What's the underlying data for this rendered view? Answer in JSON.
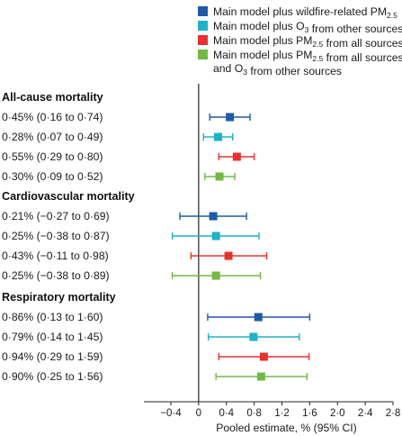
{
  "chart_data": {
    "type": "forest",
    "xlabel": "Pooled estimate, % (95% CI)",
    "xlim": [
      -0.4,
      2.8
    ],
    "xticks": [
      "−0·4",
      "0",
      "0·4",
      "0·8",
      "1·2",
      "1·6",
      "2·0",
      "2·4",
      "2·8"
    ],
    "xtick_values": [
      -0.4,
      0,
      0.4,
      0.8,
      1.2,
      1.6,
      2.0,
      2.4,
      2.8
    ],
    "reference_line": 0,
    "legend_position": "top-right",
    "series": [
      {
        "key": "wildfire",
        "name": "Main model plus wildfire-related PM2.5",
        "color": "#1f5aa6"
      },
      {
        "key": "o3other",
        "name": "Main model plus O3 from other sources",
        "color": "#1eb3c8"
      },
      {
        "key": "pmall",
        "name": "Main model plus PM2.5 from all sources",
        "color": "#e8312f"
      },
      {
        "key": "pmo3",
        "name": "Main model plus PM2.5 from all sources and O3 from other sources",
        "color": "#72b844"
      }
    ],
    "groups": [
      {
        "title": "All-cause mortality",
        "rows": [
          {
            "series": "wildfire",
            "label": "0·45% (0·16 to 0·74)",
            "est": 0.45,
            "lo": 0.16,
            "hi": 0.74
          },
          {
            "series": "o3other",
            "label": "0·28% (0·07 to 0·49)",
            "est": 0.28,
            "lo": 0.07,
            "hi": 0.49
          },
          {
            "series": "pmall",
            "label": "0·55% (0·29 to 0·80)",
            "est": 0.55,
            "lo": 0.29,
            "hi": 0.8
          },
          {
            "series": "pmo3",
            "label": "0·30% (0·09 to 0·52)",
            "est": 0.3,
            "lo": 0.09,
            "hi": 0.52
          }
        ]
      },
      {
        "title": "Cardiovascular mortality",
        "rows": [
          {
            "series": "wildfire",
            "label": "0·21% (−0·27 to 0·69)",
            "est": 0.21,
            "lo": -0.27,
            "hi": 0.69
          },
          {
            "series": "o3other",
            "label": "0·25% (−0·38 to 0·87)",
            "est": 0.25,
            "lo": -0.38,
            "hi": 0.87
          },
          {
            "series": "pmall",
            "label": "0·43% (−0·11 to 0·98)",
            "est": 0.43,
            "lo": -0.11,
            "hi": 0.98
          },
          {
            "series": "pmo3",
            "label": "0·25% (−0·38 to 0·89)",
            "est": 0.25,
            "lo": -0.38,
            "hi": 0.89
          }
        ]
      },
      {
        "title": "Respiratory mortality",
        "rows": [
          {
            "series": "wildfire",
            "label": "0·86% (0·13 to 1·60)",
            "est": 0.86,
            "lo": 0.13,
            "hi": 1.6
          },
          {
            "series": "o3other",
            "label": "0·79% (0·14 to 1·45)",
            "est": 0.79,
            "lo": 0.14,
            "hi": 1.45
          },
          {
            "series": "pmall",
            "label": "0·94% (0·29 to 1·59)",
            "est": 0.94,
            "lo": 0.29,
            "hi": 1.59
          },
          {
            "series": "pmo3",
            "label": "0·90% (0·25 to 1·56)",
            "est": 0.9,
            "lo": 0.25,
            "hi": 1.56
          }
        ]
      }
    ]
  }
}
